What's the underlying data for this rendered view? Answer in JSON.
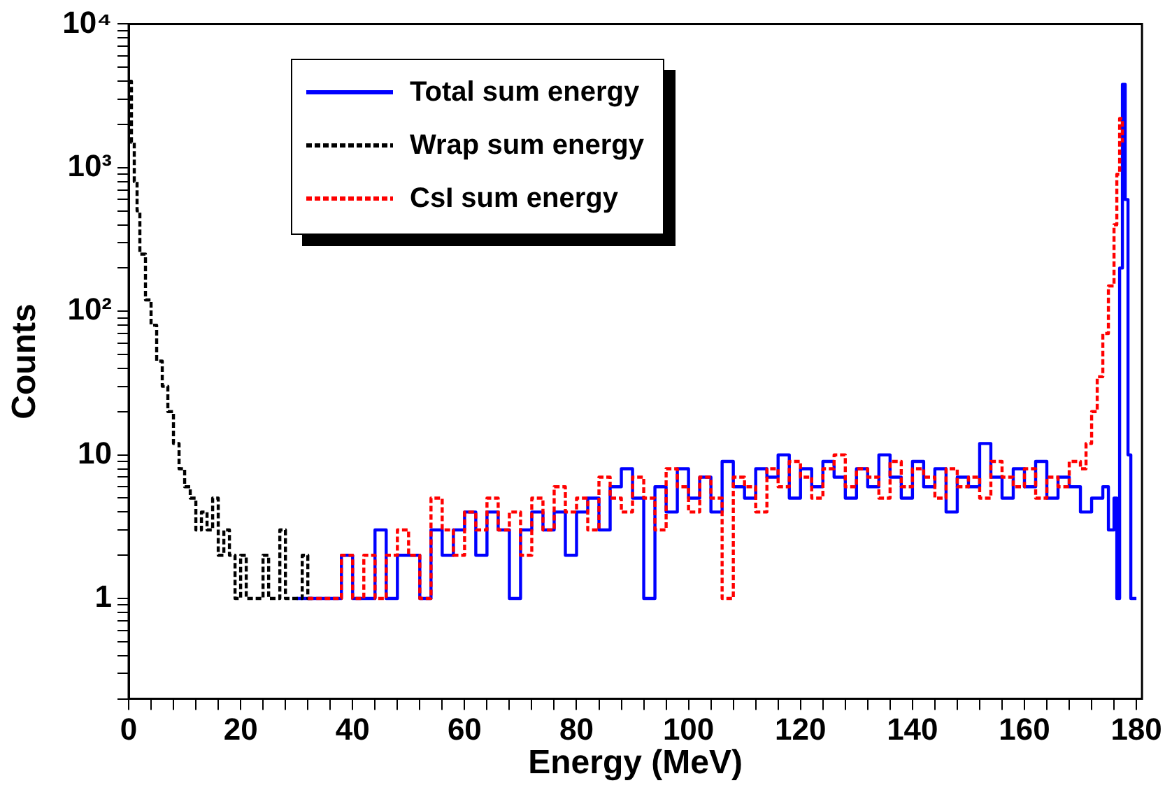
{
  "chart_data": {
    "type": "step",
    "xlabel": "Energy (MeV)",
    "ylabel": "Counts",
    "log": "y",
    "grid": false,
    "legend": "top",
    "marker": "none",
    "xlim": [
      0,
      181
    ],
    "ylim": [
      0.2,
      10000
    ],
    "xticks": [
      0,
      {
        "value": 4,
        "label": null
      },
      {
        "value": 8,
        "label": null
      },
      {
        "value": 12,
        "label": null
      },
      {
        "value": 16,
        "label": null
      },
      20,
      {
        "value": 24,
        "label": null
      },
      {
        "value": 28,
        "label": null
      },
      {
        "value": 32,
        "label": null
      },
      {
        "value": 36,
        "label": null
      },
      40,
      {
        "value": 44,
        "label": null
      },
      {
        "value": 48,
        "label": null
      },
      {
        "value": 52,
        "label": null
      },
      {
        "value": 56,
        "label": null
      },
      60,
      {
        "value": 64,
        "label": null
      },
      {
        "value": 68,
        "label": null
      },
      {
        "value": 72,
        "label": null
      },
      {
        "value": 76,
        "label": null
      },
      80,
      {
        "value": 84,
        "label": null
      },
      {
        "value": 88,
        "label": null
      },
      {
        "value": 92,
        "label": null
      },
      {
        "value": 96,
        "label": null
      },
      100,
      {
        "value": 104,
        "label": null
      },
      {
        "value": 108,
        "label": null
      },
      {
        "value": 112,
        "label": null
      },
      {
        "value": 116,
        "label": null
      },
      120,
      {
        "value": 124,
        "label": null
      },
      {
        "value": 128,
        "label": null
      },
      {
        "value": 132,
        "label": null
      },
      {
        "value": 136,
        "label": null
      },
      140,
      {
        "value": 144,
        "label": null
      },
      {
        "value": 148,
        "label": null
      },
      {
        "value": 152,
        "label": null
      },
      {
        "value": 156,
        "label": null
      },
      160,
      {
        "value": 164,
        "label": null
      },
      {
        "value": 168,
        "label": null
      },
      {
        "value": 172,
        "label": null
      },
      {
        "value": 176,
        "label": null
      },
      180
    ],
    "yticks": [
      {
        "value": 0.2,
        "label": null
      },
      {
        "value": 0.3,
        "label": null
      },
      {
        "value": 0.4,
        "label": null
      },
      {
        "value": 0.5,
        "label": null
      },
      {
        "value": 0.6,
        "label": null
      },
      {
        "value": 0.7,
        "label": null
      },
      {
        "value": 0.8,
        "label": null
      },
      {
        "value": 0.9,
        "label": null
      },
      1,
      {
        "value": 2,
        "label": null
      },
      {
        "value": 3,
        "label": null
      },
      {
        "value": 4,
        "label": null
      },
      {
        "value": 5,
        "label": null
      },
      {
        "value": 6,
        "label": null
      },
      {
        "value": 7,
        "label": null
      },
      {
        "value": 8,
        "label": null
      },
      {
        "value": 9,
        "label": null
      },
      10,
      {
        "value": 20,
        "label": null
      },
      {
        "value": 30,
        "label": null
      },
      {
        "value": 40,
        "label": null
      },
      {
        "value": 50,
        "label": null
      },
      {
        "value": 60,
        "label": null
      },
      {
        "value": 70,
        "label": null
      },
      {
        "value": 80,
        "label": null
      },
      {
        "value": 90,
        "label": null
      },
      {
        "value": 100,
        "label": "10²"
      },
      {
        "value": 200,
        "label": null
      },
      {
        "value": 300,
        "label": null
      },
      {
        "value": 400,
        "label": null
      },
      {
        "value": 500,
        "label": null
      },
      {
        "value": 600,
        "label": null
      },
      {
        "value": 700,
        "label": null
      },
      {
        "value": 800,
        "label": null
      },
      {
        "value": 900,
        "label": null
      },
      {
        "value": 1000,
        "label": "10³"
      },
      {
        "value": 2000,
        "label": null
      },
      {
        "value": 3000,
        "label": null
      },
      {
        "value": 4000,
        "label": null
      },
      {
        "value": 5000,
        "label": null
      },
      {
        "value": 6000,
        "label": null
      },
      {
        "value": 7000,
        "label": null
      },
      {
        "value": 8000,
        "label": null
      },
      {
        "value": 9000,
        "label": null
      },
      {
        "value": 10000,
        "label": "10⁴"
      }
    ],
    "series": [
      {
        "name": "Total sum energy",
        "color": "#0000ff",
        "line_style": "solid",
        "x": [
          30,
          32,
          34,
          36,
          38,
          40,
          42,
          44,
          46,
          48,
          50,
          52,
          54,
          56,
          58,
          60,
          62,
          64,
          66,
          68,
          70,
          72,
          74,
          76,
          78,
          80,
          82,
          84,
          86,
          88,
          90,
          92,
          94,
          96,
          98,
          100,
          102,
          104,
          106,
          108,
          110,
          112,
          114,
          116,
          118,
          120,
          122,
          124,
          126,
          128,
          130,
          132,
          134,
          136,
          138,
          140,
          142,
          144,
          146,
          148,
          150,
          152,
          154,
          156,
          158,
          160,
          162,
          164,
          166,
          168,
          170,
          172,
          174,
          175,
          176,
          176.5,
          177,
          177.5,
          178,
          178.5,
          179,
          179.5,
          180
        ],
        "values": [
          1,
          1,
          1,
          1,
          2,
          1,
          1,
          3,
          1,
          2,
          2,
          1,
          3,
          2,
          3,
          4,
          2,
          4,
          3,
          1,
          3,
          4,
          3,
          4,
          2,
          4,
          5,
          3,
          6,
          8,
          5,
          1,
          6,
          4,
          8,
          5,
          7,
          4,
          9,
          6,
          5,
          8,
          7,
          10,
          5,
          8,
          6,
          9,
          7,
          5,
          8,
          6,
          10,
          7,
          5,
          9,
          6,
          8,
          4,
          7,
          6,
          12,
          7,
          5,
          8,
          6,
          9,
          5,
          7,
          6,
          4,
          5,
          6,
          3,
          5,
          1,
          200,
          3800,
          600,
          10,
          1,
          1,
          1
        ]
      },
      {
        "name": "Wrap sum energy",
        "color": "#000000",
        "line_style": "dashed",
        "x": [
          0,
          0.5,
          1,
          1.5,
          2,
          3,
          4,
          5,
          6,
          7,
          8,
          9,
          10,
          11,
          12,
          13,
          14,
          15,
          16,
          17,
          18,
          19,
          20,
          21,
          22,
          23,
          24,
          25,
          26,
          27,
          28,
          29,
          30,
          31,
          32,
          33
        ],
        "values": [
          4000,
          1500,
          800,
          500,
          250,
          120,
          80,
          45,
          30,
          20,
          12,
          8,
          6,
          5,
          3,
          4,
          3,
          5,
          2,
          3,
          2,
          1,
          2,
          1,
          1,
          1,
          2,
          1,
          1,
          3,
          1,
          1,
          1,
          2,
          1,
          1
        ]
      },
      {
        "name": "CsI sum energy",
        "color": "#ff0000",
        "line_style": "dashed",
        "x": [
          32,
          34,
          36,
          38,
          40,
          42,
          44,
          46,
          48,
          50,
          52,
          54,
          56,
          58,
          60,
          62,
          64,
          66,
          68,
          70,
          72,
          74,
          76,
          78,
          80,
          82,
          84,
          86,
          88,
          90,
          92,
          94,
          96,
          98,
          100,
          102,
          104,
          106,
          108,
          110,
          112,
          114,
          116,
          118,
          120,
          122,
          124,
          126,
          128,
          130,
          132,
          134,
          136,
          138,
          140,
          142,
          144,
          146,
          148,
          150,
          152,
          154,
          156,
          158,
          160,
          162,
          164,
          166,
          168,
          170,
          171,
          172,
          173,
          174,
          175,
          176,
          176.5,
          177,
          177.5
        ],
        "values": [
          1,
          1,
          1,
          2,
          1,
          2,
          1,
          2,
          3,
          2,
          1,
          5,
          3,
          2,
          4,
          3,
          5,
          3,
          4,
          2,
          5,
          3,
          6,
          4,
          5,
          3,
          7,
          5,
          4,
          7,
          5,
          3,
          8,
          6,
          4,
          7,
          5,
          1,
          7,
          6,
          4,
          8,
          6,
          9,
          7,
          5,
          8,
          10,
          6,
          8,
          7,
          5,
          9,
          6,
          8,
          7,
          5,
          8,
          6,
          7,
          5,
          9,
          7,
          6,
          8,
          5,
          7,
          6,
          9,
          8,
          12,
          20,
          35,
          70,
          150,
          400,
          900,
          2200,
          1500
        ]
      }
    ]
  }
}
